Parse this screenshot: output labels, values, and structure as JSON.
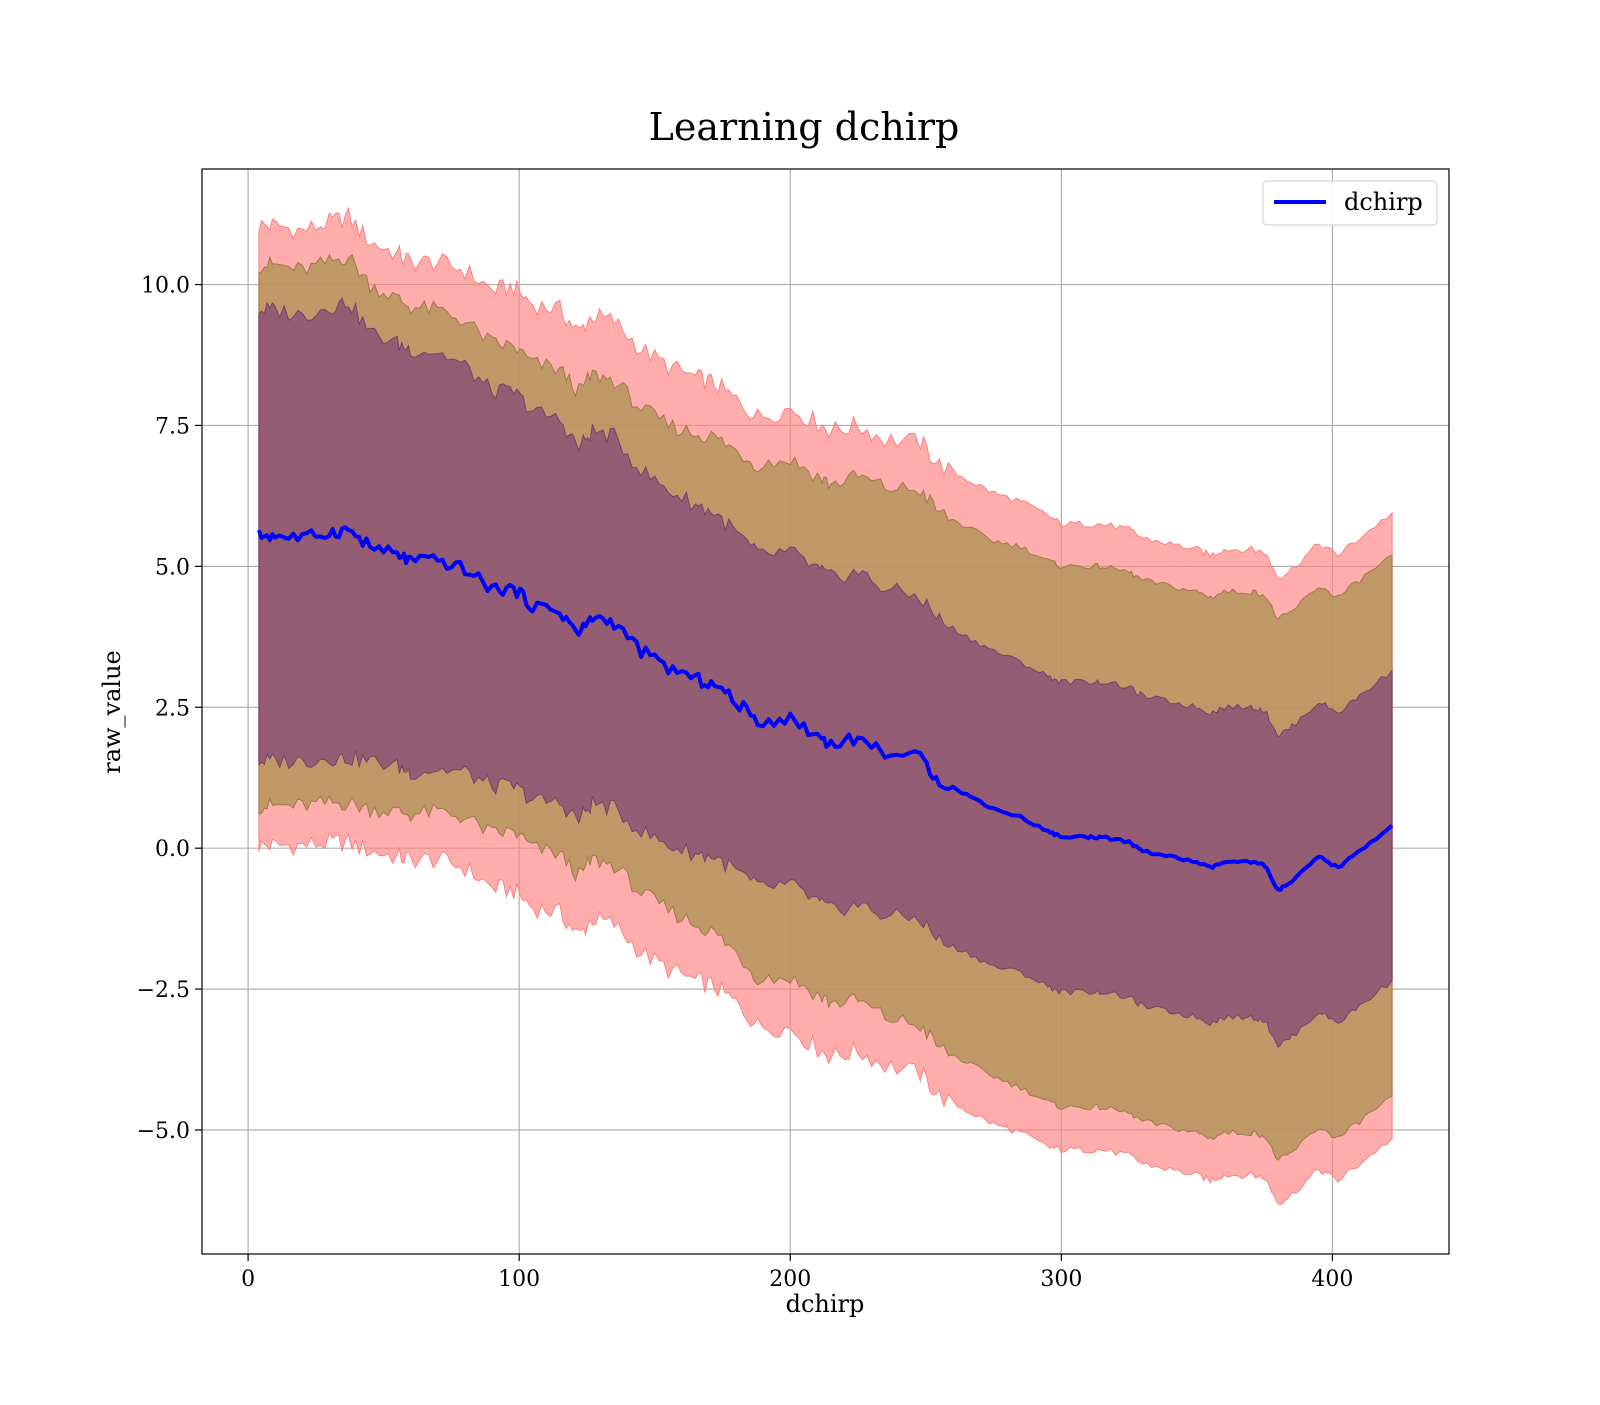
{
  "chart_data": {
    "type": "line",
    "title": "Learning dchirp",
    "xlabel": "dchirp",
    "ylabel": "raw_value",
    "xlim": [
      -17,
      443
    ],
    "ylim": [
      -7.2,
      12.05
    ],
    "xticks": [
      0,
      100,
      200,
      300,
      400
    ],
    "xtick_labels": [
      "0",
      "100",
      "200",
      "300",
      "400"
    ],
    "yticks": [
      -5,
      -2.5,
      0,
      2.5,
      5,
      7.5,
      10
    ],
    "ytick_labels": [
      "−5.0",
      "−2.5",
      "0.0",
      "2.5",
      "5.0",
      "7.5",
      "10.0"
    ],
    "grid": true,
    "legend": {
      "position": "top-right",
      "entries": [
        "dchirp"
      ]
    },
    "colors": {
      "line": "#0000ff",
      "outer_band": "#ff8080",
      "middle_band": "#b5935b",
      "inner_band": "#8a4f78",
      "grid": "#b0b0b0"
    },
    "series": [
      {
        "name": "dchirp",
        "x": [
          4,
          10,
          20,
          30,
          37,
          45,
          55,
          60,
          70,
          80,
          90,
          98,
          105,
          115,
          122,
          127,
          135,
          145,
          155,
          165,
          172,
          180,
          188,
          200,
          210,
          215,
          225,
          235,
          248,
          255,
          265,
          275,
          285,
          295,
          300,
          310,
          315,
          325,
          330,
          340,
          350,
          355,
          360,
          370,
          375,
          380,
          385,
          395,
          402,
          410,
          422
        ],
        "mean": [
          5.55,
          5.55,
          5.5,
          5.6,
          5.65,
          5.35,
          5.2,
          5.1,
          5.1,
          4.95,
          4.6,
          4.6,
          4.3,
          4.2,
          3.8,
          4.1,
          4.0,
          3.5,
          3.2,
          3.0,
          2.9,
          2.6,
          2.25,
          2.3,
          2.0,
          1.85,
          1.95,
          1.7,
          1.6,
          1.2,
          0.95,
          0.7,
          0.55,
          0.3,
          0.2,
          0.2,
          0.2,
          0.1,
          -0.05,
          -0.15,
          -0.25,
          -0.35,
          -0.25,
          -0.25,
          -0.3,
          -0.75,
          -0.6,
          -0.15,
          -0.35,
          -0.05,
          0.4
        ],
        "band_inner": [
          4.0,
          4.0,
          3.95,
          4.0,
          4.05,
          3.8,
          3.75,
          3.75,
          3.7,
          3.6,
          3.5,
          3.5,
          3.45,
          3.4,
          3.3,
          3.3,
          3.3,
          3.2,
          3.15,
          3.1,
          3.05,
          3.0,
          2.95,
          2.95,
          2.95,
          2.95,
          2.95,
          2.9,
          2.85,
          2.85,
          2.8,
          2.8,
          2.75,
          2.75,
          2.75,
          2.75,
          2.75,
          2.75,
          2.75,
          2.75,
          2.75,
          2.75,
          2.75,
          2.75,
          2.75,
          2.75,
          2.75,
          2.75,
          2.75,
          2.75,
          2.75
        ],
        "band_middle": [
          4.8,
          4.8,
          4.75,
          4.8,
          4.85,
          4.65,
          4.55,
          4.5,
          4.45,
          4.4,
          4.35,
          4.3,
          4.3,
          4.3,
          4.3,
          4.3,
          4.3,
          4.3,
          4.3,
          4.35,
          4.4,
          4.45,
          4.55,
          4.6,
          4.6,
          4.6,
          4.65,
          4.7,
          4.75,
          4.75,
          4.75,
          4.75,
          4.8,
          4.8,
          4.8,
          4.8,
          4.8,
          4.8,
          4.8,
          4.8,
          4.8,
          4.8,
          4.8,
          4.8,
          4.8,
          4.8,
          4.8,
          4.8,
          4.8,
          4.8,
          4.8
        ],
        "band_outer": [
          5.5,
          5.5,
          5.45,
          5.5,
          5.55,
          5.4,
          5.35,
          5.3,
          5.3,
          5.3,
          5.3,
          5.35,
          5.35,
          5.35,
          5.35,
          5.35,
          5.35,
          5.35,
          5.35,
          5.35,
          5.35,
          5.35,
          5.4,
          5.5,
          5.55,
          5.55,
          5.55,
          5.55,
          5.6,
          5.6,
          5.6,
          5.6,
          5.6,
          5.6,
          5.55,
          5.55,
          5.55,
          5.55,
          5.55,
          5.55,
          5.55,
          5.55,
          5.55,
          5.55,
          5.55,
          5.55,
          5.55,
          5.55,
          5.55,
          5.55,
          5.55
        ]
      }
    ]
  }
}
